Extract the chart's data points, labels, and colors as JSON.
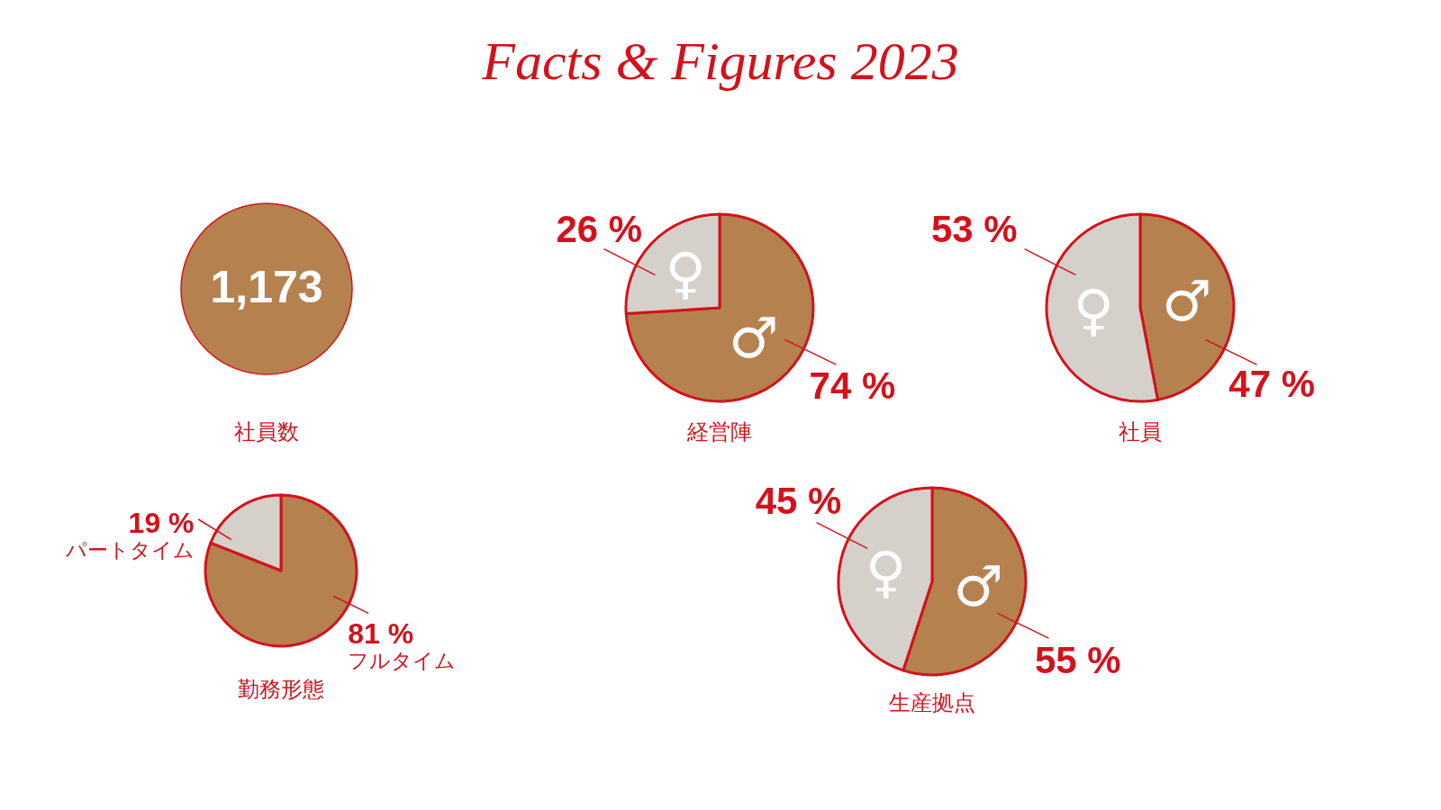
{
  "chart_data": [
    {
      "type": "other",
      "title": "Facts & Figures 2023"
    },
    {
      "type": "other",
      "title": "社員数",
      "values": [
        1173
      ],
      "value_labels": [
        "1,173"
      ],
      "colors": [
        "#b5814f"
      ]
    },
    {
      "type": "pie",
      "title": "経営陣",
      "categories": [
        "♂",
        "♀"
      ],
      "values": [
        74,
        26
      ],
      "colors": [
        "#b5814f",
        "#d6d0cb"
      ],
      "value_labels": [
        "74 %",
        "26 %"
      ]
    },
    {
      "type": "pie",
      "title": "社員",
      "categories": [
        "♂",
        "♀"
      ],
      "values": [
        47,
        53
      ],
      "colors": [
        "#b5814f",
        "#d6d0cb"
      ],
      "value_labels": [
        "47 %",
        "53 %"
      ]
    },
    {
      "type": "pie",
      "title": "勤務形態",
      "categories": [
        "フルタイム",
        "パートタイム"
      ],
      "values": [
        81,
        19
      ],
      "colors": [
        "#b5814f",
        "#d6d0cb"
      ],
      "value_labels": [
        "81 %",
        "19 %"
      ]
    },
    {
      "type": "pie",
      "title": "生産拠点",
      "categories": [
        "♂",
        "♀"
      ],
      "values": [
        55,
        45
      ],
      "colors": [
        "#b5814f",
        "#d6d0cb"
      ],
      "value_labels": [
        "55 %",
        "45 %"
      ]
    }
  ]
}
